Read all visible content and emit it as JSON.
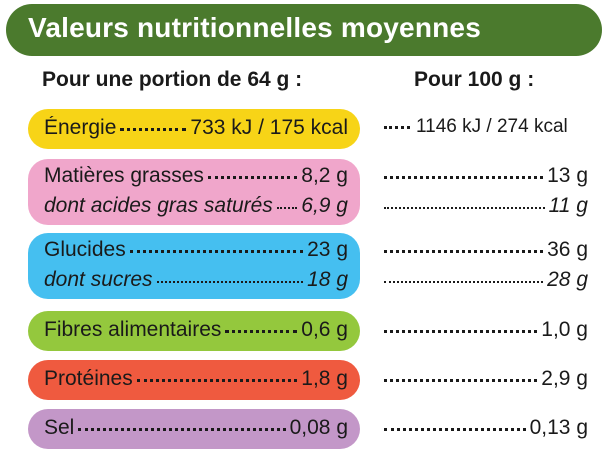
{
  "title": "Valeurs nutritionnelles moyennes",
  "headers": {
    "portion": "Pour une portion de 64 g :",
    "per100": "Pour 100 g :"
  },
  "colors": {
    "banner": "#4b7a2d",
    "energie": "#f7d417",
    "matieres": "#f0a6cb",
    "glucides": "#45bff0",
    "fibres": "#94c83d",
    "proteines": "#ef5a3f",
    "sel": "#c397c8"
  },
  "rows": [
    {
      "label": "Énergie",
      "portion": "733 kJ / 175 kcal",
      "per100": "1146 kJ / 274 kcal"
    },
    {
      "label": "Matières grasses",
      "portion": "8,2 g",
      "per100": "13 g"
    },
    {
      "label": "dont acides gras saturés",
      "portion": "6,9 g",
      "per100": "11 g"
    },
    {
      "label": "Glucides",
      "portion": "23 g",
      "per100": "36 g"
    },
    {
      "label": "dont sucres",
      "portion": "18 g",
      "per100": "28 g"
    },
    {
      "label": "Fibres alimentaires",
      "portion": "0,6 g",
      "per100": "1,0 g"
    },
    {
      "label": "Protéines",
      "portion": "1,8 g",
      "per100": "2,9 g"
    },
    {
      "label": "Sel",
      "portion": "0,08 g",
      "per100": "0,13 g"
    }
  ]
}
